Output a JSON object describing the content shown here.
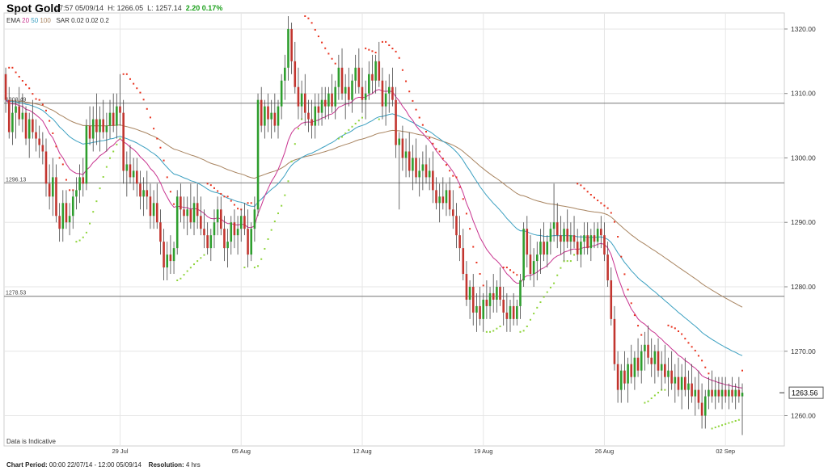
{
  "header": {
    "title": "Spot Gold",
    "time": "07:57 05/09/14",
    "high_label": "H:",
    "high": "1266.05",
    "low_label": "L:",
    "low": "1257.14",
    "change": "2.20",
    "change_pct": "0.17%",
    "indicators": {
      "ema_label": "EMA",
      "ema_periods": [
        "20",
        "50",
        "100"
      ],
      "sar_label": "SAR",
      "sar_params": "0.02 0.02 0.2"
    }
  },
  "note": "Data is Indicative",
  "footer": {
    "period_label": "Chart Period:",
    "period_value": "00:00 22/07/14 - 12:00 05/09/14",
    "resolution_label": "Resolution:",
    "resolution_value": "4 hrs"
  },
  "colors": {
    "up": "#2e9e2e",
    "down": "#c2352f",
    "ema20": "#c8338f",
    "ema50": "#3a9fc0",
    "ema100": "#a88460",
    "sar_above": "#e8321e",
    "sar_below": "#8ed43a",
    "grid": "#e6e6e6",
    "hline": "#777777"
  },
  "chart_data": {
    "type": "candlestick",
    "y_ticks": [
      1260,
      1270,
      1280,
      1290,
      1300,
      1310,
      1320
    ],
    "y_tick_labels": [
      "1260.00",
      "1270.00",
      "1280.00",
      "1290.00",
      "1300.00",
      "1310.00",
      "1320.00"
    ],
    "ylim": [
      1255.3,
      1322.5
    ],
    "x_ticks": [
      {
        "label": "29 Jul",
        "index": 34
      },
      {
        "label": "05 Aug",
        "index": 70
      },
      {
        "label": "12 Aug",
        "index": 106
      },
      {
        "label": "19 Aug",
        "index": 142
      },
      {
        "label": "26 Aug",
        "index": 178
      },
      {
        "label": "02 Sep",
        "index": 214
      }
    ],
    "horizontal_lines": [
      {
        "value": 1308.49,
        "label": "1308.49"
      },
      {
        "value": 1296.13,
        "label": "1296.13"
      },
      {
        "value": 1278.53,
        "label": "1278.53"
      }
    ],
    "last_price": {
      "value": 1263.56,
      "label": "1263.56"
    },
    "candle_count": 232,
    "candles": [
      [
        1313,
        1314,
        1307,
        1309
      ],
      [
        1309,
        1311,
        1303,
        1304
      ],
      [
        1304,
        1309,
        1302,
        1307
      ],
      [
        1307,
        1309,
        1303,
        1308
      ],
      [
        1308,
        1311,
        1305,
        1306
      ],
      [
        1306,
        1310,
        1304,
        1307
      ],
      [
        1307,
        1308,
        1302,
        1303
      ],
      [
        1303,
        1307,
        1300,
        1306
      ],
      [
        1306,
        1309,
        1303,
        1304
      ],
      [
        1304,
        1306,
        1301,
        1303
      ],
      [
        1303,
        1305,
        1300,
        1302
      ],
      [
        1302,
        1304,
        1299,
        1301
      ],
      [
        1301,
        1303,
        1294,
        1296
      ],
      [
        1296,
        1299,
        1292,
        1294
      ],
      [
        1294,
        1300,
        1291,
        1297
      ],
      [
        1297,
        1299,
        1290,
        1291
      ],
      [
        1291,
        1293,
        1287,
        1289
      ],
      [
        1289,
        1295,
        1287,
        1293
      ],
      [
        1293,
        1295,
        1289,
        1290
      ],
      [
        1290,
        1293,
        1288,
        1291
      ],
      [
        1291,
        1295,
        1289,
        1294
      ],
      [
        1294,
        1297,
        1292,
        1295
      ],
      [
        1295,
        1299,
        1293,
        1297
      ],
      [
        1297,
        1300,
        1294,
        1296
      ],
      [
        1296,
        1306,
        1295,
        1305
      ],
      [
        1305,
        1308,
        1302,
        1303
      ],
      [
        1303,
        1308,
        1301,
        1306
      ],
      [
        1306,
        1310,
        1302,
        1304
      ],
      [
        1304,
        1308,
        1301,
        1306
      ],
      [
        1306,
        1309,
        1303,
        1304
      ],
      [
        1304,
        1307,
        1301,
        1305
      ],
      [
        1305,
        1309,
        1303,
        1307
      ],
      [
        1307,
        1310,
        1304,
        1305
      ],
      [
        1305,
        1310,
        1303,
        1308
      ],
      [
        1308,
        1313,
        1305,
        1307
      ],
      [
        1307,
        1309,
        1296,
        1298
      ],
      [
        1298,
        1301,
        1294,
        1299
      ],
      [
        1299,
        1302,
        1296,
        1297
      ],
      [
        1297,
        1300,
        1295,
        1298
      ],
      [
        1298,
        1300,
        1294,
        1296
      ],
      [
        1296,
        1298,
        1292,
        1294
      ],
      [
        1294,
        1297,
        1291,
        1295
      ],
      [
        1295,
        1298,
        1292,
        1294
      ],
      [
        1294,
        1296,
        1289,
        1291
      ],
      [
        1291,
        1295,
        1289,
        1293
      ],
      [
        1293,
        1296,
        1289,
        1290
      ],
      [
        1290,
        1292,
        1285,
        1287
      ],
      [
        1287,
        1289,
        1281,
        1283
      ],
      [
        1283,
        1287,
        1281,
        1285
      ],
      [
        1285,
        1288,
        1282,
        1284
      ],
      [
        1284,
        1287,
        1282,
        1286
      ],
      [
        1286,
        1295,
        1285,
        1294
      ],
      [
        1294,
        1296,
        1290,
        1292
      ],
      [
        1292,
        1294,
        1289,
        1291
      ],
      [
        1291,
        1294,
        1288,
        1292
      ],
      [
        1292,
        1296,
        1289,
        1290
      ],
      [
        1290,
        1294,
        1288,
        1293
      ],
      [
        1293,
        1296,
        1289,
        1291
      ],
      [
        1291,
        1294,
        1288,
        1289
      ],
      [
        1289,
        1292,
        1286,
        1288
      ],
      [
        1288,
        1290,
        1285,
        1286
      ],
      [
        1286,
        1289,
        1284,
        1288
      ],
      [
        1288,
        1292,
        1286,
        1290
      ],
      [
        1290,
        1294,
        1288,
        1292
      ],
      [
        1292,
        1294,
        1288,
        1289
      ],
      [
        1289,
        1291,
        1284,
        1286
      ],
      [
        1286,
        1289,
        1283,
        1287
      ],
      [
        1287,
        1291,
        1285,
        1290
      ],
      [
        1290,
        1292,
        1286,
        1288
      ],
      [
        1288,
        1291,
        1285,
        1289
      ],
      [
        1289,
        1292,
        1287,
        1291
      ],
      [
        1291,
        1293,
        1288,
        1289
      ],
      [
        1289,
        1292,
        1283,
        1285
      ],
      [
        1285,
        1290,
        1284,
        1289
      ],
      [
        1289,
        1294,
        1287,
        1292
      ],
      [
        1292,
        1310,
        1291,
        1309
      ],
      [
        1309,
        1311,
        1304,
        1305
      ],
      [
        1305,
        1309,
        1303,
        1308
      ],
      [
        1308,
        1310,
        1304,
        1306
      ],
      [
        1306,
        1309,
        1303,
        1307
      ],
      [
        1307,
        1310,
        1304,
        1305
      ],
      [
        1305,
        1309,
        1303,
        1308
      ],
      [
        1308,
        1313,
        1306,
        1312
      ],
      [
        1312,
        1316,
        1309,
        1314
      ],
      [
        1314,
        1322,
        1312,
        1320
      ],
      [
        1320,
        1321,
        1313,
        1315
      ],
      [
        1315,
        1318,
        1310,
        1311
      ],
      [
        1311,
        1314,
        1306,
        1308
      ],
      [
        1308,
        1312,
        1306,
        1310
      ],
      [
        1310,
        1313,
        1305,
        1307
      ],
      [
        1307,
        1309,
        1304,
        1306
      ],
      [
        1306,
        1309,
        1303,
        1305
      ],
      [
        1305,
        1310,
        1303,
        1308
      ],
      [
        1308,
        1310,
        1305,
        1307
      ],
      [
        1307,
        1311,
        1305,
        1309
      ],
      [
        1309,
        1311,
        1306,
        1308
      ],
      [
        1308,
        1311,
        1306,
        1310
      ],
      [
        1310,
        1313,
        1307,
        1308
      ],
      [
        1308,
        1312,
        1306,
        1311
      ],
      [
        1311,
        1316,
        1309,
        1314
      ],
      [
        1314,
        1317,
        1309,
        1310
      ],
      [
        1310,
        1313,
        1306,
        1311
      ],
      [
        1311,
        1314,
        1308,
        1309
      ],
      [
        1309,
        1313,
        1307,
        1312
      ],
      [
        1312,
        1316,
        1310,
        1314
      ],
      [
        1314,
        1317,
        1310,
        1311
      ],
      [
        1311,
        1314,
        1307,
        1309
      ],
      [
        1309,
        1312,
        1306,
        1310
      ],
      [
        1310,
        1315,
        1309,
        1313
      ],
      [
        1313,
        1316,
        1310,
        1312
      ],
      [
        1312,
        1316,
        1310,
        1315
      ],
      [
        1315,
        1318,
        1311,
        1312
      ],
      [
        1312,
        1314,
        1306,
        1308
      ],
      [
        1308,
        1312,
        1305,
        1310
      ],
      [
        1310,
        1313,
        1307,
        1311
      ],
      [
        1311,
        1314,
        1308,
        1309
      ],
      [
        1309,
        1311,
        1300,
        1302
      ],
      [
        1302,
        1304,
        1292,
        1303
      ],
      [
        1303,
        1305,
        1298,
        1300
      ],
      [
        1300,
        1303,
        1297,
        1301
      ],
      [
        1301,
        1304,
        1297,
        1298
      ],
      [
        1298,
        1302,
        1295,
        1300
      ],
      [
        1300,
        1303,
        1296,
        1297
      ],
      [
        1297,
        1300,
        1294,
        1298
      ],
      [
        1298,
        1301,
        1295,
        1299
      ],
      [
        1299,
        1302,
        1296,
        1297
      ],
      [
        1297,
        1300,
        1295,
        1298
      ],
      [
        1298,
        1301,
        1293,
        1295
      ],
      [
        1295,
        1297,
        1292,
        1293
      ],
      [
        1293,
        1296,
        1290,
        1294
      ],
      [
        1294,
        1297,
        1292,
        1293
      ],
      [
        1293,
        1296,
        1291,
        1295
      ],
      [
        1295,
        1297,
        1291,
        1292
      ],
      [
        1292,
        1295,
        1289,
        1291
      ],
      [
        1291,
        1293,
        1286,
        1288
      ],
      [
        1288,
        1291,
        1284,
        1286
      ],
      [
        1286,
        1289,
        1281,
        1282
      ],
      [
        1282,
        1284,
        1277,
        1278
      ],
      [
        1278,
        1281,
        1275,
        1280
      ],
      [
        1280,
        1282,
        1274,
        1276
      ],
      [
        1276,
        1279,
        1273,
        1277
      ],
      [
        1277,
        1280,
        1274,
        1275
      ],
      [
        1275,
        1279,
        1273,
        1278
      ],
      [
        1278,
        1281,
        1275,
        1277
      ],
      [
        1277,
        1280,
        1275,
        1279
      ],
      [
        1279,
        1282,
        1276,
        1278
      ],
      [
        1278,
        1281,
        1276,
        1280
      ],
      [
        1280,
        1283,
        1277,
        1278
      ],
      [
        1278,
        1280,
        1274,
        1276
      ],
      [
        1276,
        1279,
        1273,
        1275
      ],
      [
        1275,
        1278,
        1273,
        1277
      ],
      [
        1277,
        1279,
        1274,
        1275
      ],
      [
        1275,
        1278,
        1274,
        1277
      ],
      [
        1277,
        1282,
        1275,
        1281
      ],
      [
        1281,
        1290,
        1280,
        1289
      ],
      [
        1289,
        1291,
        1283,
        1285
      ],
      [
        1285,
        1288,
        1281,
        1282
      ],
      [
        1282,
        1286,
        1280,
        1284
      ],
      [
        1284,
        1287,
        1281,
        1285
      ],
      [
        1285,
        1289,
        1282,
        1287
      ],
      [
        1287,
        1290,
        1284,
        1285
      ],
      [
        1285,
        1288,
        1283,
        1287
      ],
      [
        1287,
        1290,
        1285,
        1289
      ],
      [
        1289,
        1296,
        1287,
        1290
      ],
      [
        1290,
        1293,
        1286,
        1288
      ],
      [
        1288,
        1291,
        1285,
        1287
      ],
      [
        1287,
        1290,
        1284,
        1289
      ],
      [
        1289,
        1292,
        1286,
        1287
      ],
      [
        1287,
        1290,
        1285,
        1288
      ],
      [
        1288,
        1291,
        1286,
        1287
      ],
      [
        1287,
        1289,
        1284,
        1285
      ],
      [
        1285,
        1288,
        1283,
        1287
      ],
      [
        1287,
        1290,
        1285,
        1288
      ],
      [
        1288,
        1290,
        1285,
        1286
      ],
      [
        1286,
        1289,
        1284,
        1288
      ],
      [
        1288,
        1290,
        1286,
        1287
      ],
      [
        1287,
        1290,
        1286,
        1289
      ],
      [
        1289,
        1291,
        1286,
        1288
      ],
      [
        1288,
        1290,
        1284,
        1285
      ],
      [
        1285,
        1287,
        1280,
        1281
      ],
      [
        1281,
        1283,
        1274,
        1275
      ],
      [
        1275,
        1277,
        1267,
        1268
      ],
      [
        1268,
        1270,
        1262,
        1264
      ],
      [
        1264,
        1268,
        1262,
        1267
      ],
      [
        1267,
        1270,
        1264,
        1265
      ],
      [
        1265,
        1269,
        1262,
        1268
      ],
      [
        1268,
        1271,
        1265,
        1266
      ],
      [
        1266,
        1270,
        1264,
        1269
      ],
      [
        1269,
        1272,
        1266,
        1267
      ],
      [
        1267,
        1271,
        1265,
        1270
      ],
      [
        1270,
        1273,
        1267,
        1271
      ],
      [
        1271,
        1274,
        1268,
        1269
      ],
      [
        1269,
        1272,
        1266,
        1268
      ],
      [
        1268,
        1271,
        1265,
        1270
      ],
      [
        1270,
        1272,
        1266,
        1267
      ],
      [
        1267,
        1270,
        1264,
        1268
      ],
      [
        1268,
        1271,
        1265,
        1266
      ],
      [
        1266,
        1269,
        1263,
        1267
      ],
      [
        1267,
        1270,
        1264,
        1265
      ],
      [
        1265,
        1268,
        1262,
        1266
      ],
      [
        1266,
        1269,
        1263,
        1264
      ],
      [
        1264,
        1268,
        1261,
        1266
      ],
      [
        1266,
        1269,
        1263,
        1264
      ],
      [
        1264,
        1267,
        1261,
        1265
      ],
      [
        1265,
        1268,
        1262,
        1263
      ],
      [
        1263,
        1266,
        1260,
        1264
      ],
      [
        1264,
        1267,
        1261,
        1262
      ],
      [
        1262,
        1265,
        1258,
        1260
      ],
      [
        1260,
        1264,
        1258,
        1263
      ],
      [
        1263,
        1266,
        1261,
        1264
      ],
      [
        1264,
        1267,
        1262,
        1263
      ],
      [
        1263,
        1266,
        1261,
        1264
      ],
      [
        1264,
        1266,
        1262,
        1263
      ],
      [
        1263,
        1266,
        1261,
        1264
      ],
      [
        1264,
        1266,
        1262,
        1263
      ],
      [
        1263,
        1265,
        1261,
        1264
      ],
      [
        1264,
        1266,
        1262,
        1263
      ],
      [
        1263,
        1265,
        1261,
        1264
      ],
      [
        1264,
        1266,
        1262,
        1263
      ],
      [
        1263,
        1265,
        1257,
        1263.56
      ]
    ]
  }
}
